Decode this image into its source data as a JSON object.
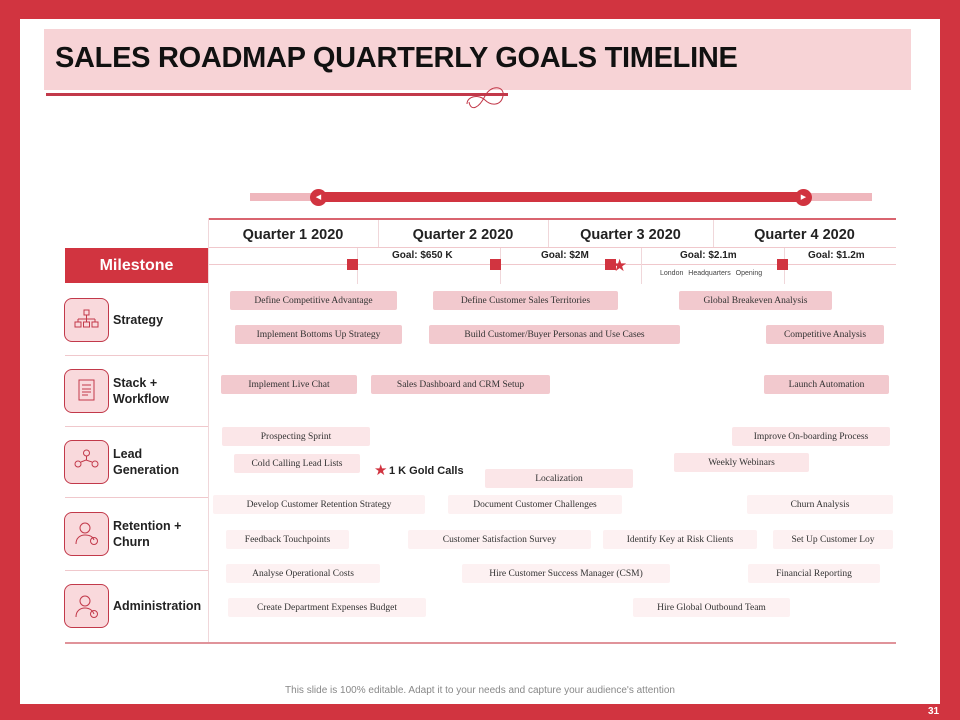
{
  "title": "SALES ROADMAP QUARTERLY GOALS TIMELINE",
  "quarters": [
    "Quarter 1 2020",
    "Quarter 2 2020",
    "Quarter 3 2020",
    "Quarter 4 2020"
  ],
  "milestone_header": "Milestone",
  "goals": [
    "Goal: $650 K",
    "Goal: $2M",
    "Goal: $2.1m",
    "Goal: $1.2m"
  ],
  "london_note": "London Headquarters Opening",
  "rows": [
    {
      "label": "Strategy",
      "icon": "org-chart-icon"
    },
    {
      "label": "Stack + Workflow",
      "icon": "document-list-icon"
    },
    {
      "label": "Lead Generation",
      "icon": "team-network-icon"
    },
    {
      "label": "Retention + Churn",
      "icon": "person-add-icon"
    },
    {
      "label": "Administration",
      "icon": "person-money-icon"
    }
  ],
  "tasks": [
    "Define Competitive Advantage",
    "Define Customer Sales Territories",
    "Global Breakeven Analysis",
    "Implement Bottoms  Up Strategy",
    "Build Customer/Buyer Personas and Use Cases",
    "Competitive Analysis",
    "Implement Live Chat",
    "Sales Dashboard and CRM Setup",
    "Launch Automation",
    "Prospecting Sprint",
    "Improve On-boarding Process",
    "Cold Calling Lead Lists",
    "Weekly Webinars",
    "Localization",
    "Develop Customer Retention Strategy",
    "Document Customer Challenges",
    "Churn Analysis",
    "Feedback Touchpoints",
    "Customer Satisfaction Survey",
    "Identify Key at Risk Clients",
    "Set Up Customer Loy",
    "Analyse Operational Costs",
    "Hire Customer Success Manager (CSM)",
    "Financial Reporting",
    "Create Department Expenses Budget",
    "Hire Global Outbound Team"
  ],
  "gold_calls": "1 K Gold Calls",
  "footer": "This slide is 100% editable. Adapt it to your needs and capture your audience's attention",
  "page_number": "31",
  "colors": {
    "accent": "#d13440",
    "title_band": "#f7d3d6"
  }
}
